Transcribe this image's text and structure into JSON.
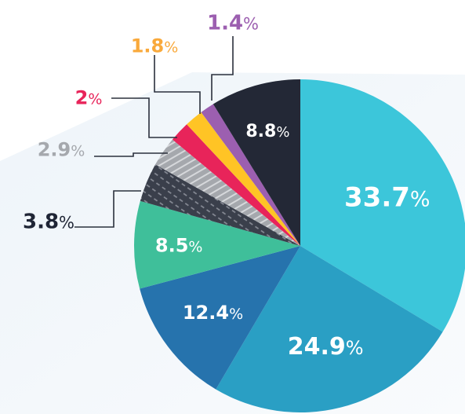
{
  "chart_data": {
    "type": "pie",
    "title": "",
    "unit_suffix": "%",
    "slices": [
      {
        "value": "33.7",
        "color": "#3cc6da"
      },
      {
        "value": "24.9",
        "color": "#2a9fc4"
      },
      {
        "value": "12.4",
        "color": "#2673ad"
      },
      {
        "value": "8.5",
        "color": "#3fbf9a"
      },
      {
        "value": "3.8",
        "color": "#3a3f4b",
        "pattern": "dark-dashed-stripes",
        "label_color": "#1f2535"
      },
      {
        "value": "2.9",
        "color": "#a5a8ad",
        "pattern": "gray-stripes",
        "label_color": "#a5a8ad"
      },
      {
        "value": "2",
        "color": "#e8245a",
        "label_color": "#e8245a"
      },
      {
        "value": "1.8",
        "color": "#ffc425",
        "label_color": "#f9a93b"
      },
      {
        "value": "1.4",
        "color": "#9c5fb0",
        "label_color": "#9c5fb0"
      },
      {
        "value": "8.8",
        "color": "#232836"
      }
    ]
  }
}
